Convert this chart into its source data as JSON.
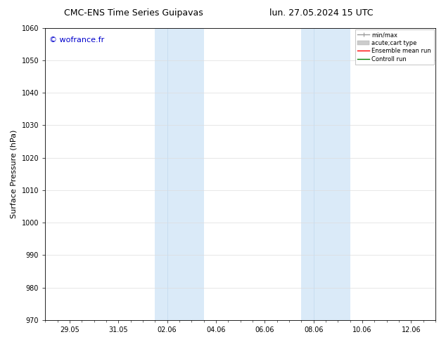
{
  "title_left": "CMC-ENS Time Series Guipavas",
  "title_right": "lun. 27.05.2024 15 UTC",
  "ylabel": "Surface Pressure (hPa)",
  "ylim": [
    970,
    1060
  ],
  "yticks": [
    970,
    980,
    990,
    1000,
    1010,
    1020,
    1030,
    1040,
    1050,
    1060
  ],
  "xtick_labels": [
    "29.05",
    "31.05",
    "02.06",
    "04.06",
    "06.06",
    "08.06",
    "10.06",
    "12.06"
  ],
  "xtick_positions": [
    1,
    3,
    5,
    7,
    9,
    11,
    13,
    15
  ],
  "xlim": [
    0,
    16
  ],
  "shaded_bands": [
    {
      "x_start": 4.5,
      "x_end": 5.0,
      "color": "#d9eaf7"
    },
    {
      "x_start": 5.0,
      "x_end": 6.5,
      "color": "#d9eaf7"
    },
    {
      "x_start": 10.5,
      "x_end": 11.0,
      "color": "#d9eaf7"
    },
    {
      "x_start": 11.0,
      "x_end": 12.5,
      "color": "#d9eaf7"
    }
  ],
  "shade1_start": 4.5,
  "shade1_mid": 5.0,
  "shade1_end": 6.5,
  "shade2_start": 10.5,
  "shade2_mid": 11.0,
  "shade2_end": 12.5,
  "shade_color": "#daeaf8",
  "watermark": "© wofrance.fr",
  "watermark_color": "#0000cc",
  "legend_items": [
    {
      "label": "min/max",
      "color": "#999999",
      "lw": 1.0
    },
    {
      "label": "acute;cart type",
      "color": "#cccccc",
      "lw": 5
    },
    {
      "label": "Ensemble mean run",
      "color": "#ff0000",
      "lw": 1.0
    },
    {
      "label": "Controll run",
      "color": "#008000",
      "lw": 1.0
    }
  ],
  "background_color": "#ffffff",
  "title_fontsize": 9,
  "tick_fontsize": 7,
  "ylabel_fontsize": 8,
  "legend_fontsize": 6,
  "watermark_fontsize": 8
}
